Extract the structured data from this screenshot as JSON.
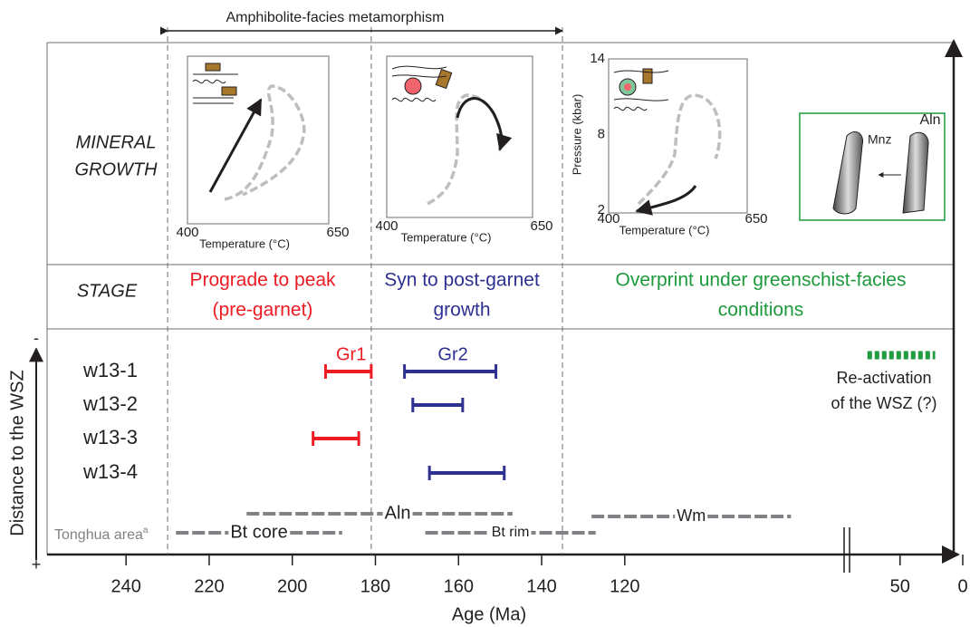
{
  "top_annotation": "Amphibolite-facies metamorphism",
  "row_labels": {
    "mineral_growth": [
      "MINERAL",
      "GROWTH"
    ],
    "stage": "STAGE"
  },
  "stages": [
    {
      "lines": [
        "Prograde to peak",
        "(pre-garnet)"
      ],
      "color": "#ed1c24"
    },
    {
      "lines": [
        "Syn to post-garnet",
        "growth"
      ],
      "color": "#2e3192"
    },
    {
      "lines": [
        "Overprint under greenschist-facies",
        "conditions"
      ],
      "color": "#1e9a3c"
    }
  ],
  "pt_panels": [
    {
      "xlabel": "Temperature (°C)",
      "xlim": [
        400,
        650
      ],
      "xticks": [
        400,
        650
      ]
    },
    {
      "xlabel": "Temperature (°C)",
      "xlim": [
        400,
        650
      ],
      "xticks": [
        400,
        650
      ]
    },
    {
      "xlabel": "Temperature (°C)",
      "xlim": [
        400,
        650
      ],
      "xticks": [
        400,
        650
      ],
      "ylabel": "Pressure (kbar)",
      "ylim": [
        2,
        14
      ],
      "yticks": [
        14,
        8,
        2
      ]
    }
  ],
  "inset": {
    "labels": [
      "Mnz",
      "Aln"
    ]
  },
  "chart_data": {
    "type": "range",
    "xlabel": "Age (Ma)",
    "ylabel": "Distance to the WSZ",
    "ylabel_ends": [
      "-",
      "+"
    ],
    "axis_segments": [
      {
        "xlim": [
          259,
          67
        ],
        "xticks": [
          240,
          220,
          200,
          180,
          160,
          140,
          120
        ]
      },
      {
        "xlim": [
          91,
          0
        ],
        "xticks": [
          50,
          0
        ]
      }
    ],
    "stage_boundaries": [
      230,
      181,
      135
    ],
    "categories": [
      "w13-1",
      "w13-2",
      "w13-3",
      "w13-4"
    ],
    "series": [
      {
        "name": "Gr1",
        "color": "#ed1c24",
        "values": [
          [
            192,
            181
          ],
          null,
          [
            195,
            184
          ],
          null
        ]
      },
      {
        "name": "Gr2",
        "color": "#2e3192",
        "values": [
          [
            173,
            151
          ],
          [
            171,
            159
          ],
          null,
          [
            167,
            149
          ]
        ]
      }
    ],
    "other_ranges": [
      {
        "name": "Aln",
        "values": [
          211,
          147
        ]
      },
      {
        "name": "Bt core",
        "values": [
          228,
          188
        ]
      },
      {
        "name": "Bt rim",
        "values": [
          168,
          127
        ]
      },
      {
        "name": "Wm",
        "values": [
          128,
          80
        ]
      }
    ],
    "other_color": "#808285",
    "area_label": "Tonghua area",
    "area_note": "a",
    "reactivation": {
      "lines": [
        "Re-activation",
        "of the WSZ (?)"
      ],
      "values": [
        76,
        22
      ],
      "segment": 1,
      "color": "#1e9a3c"
    }
  }
}
